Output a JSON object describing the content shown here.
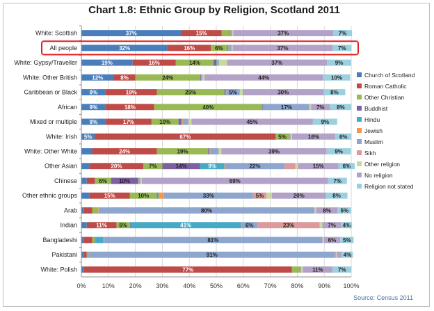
{
  "chart_data": {
    "type": "bar",
    "orientation": "horizontal",
    "stacked": true,
    "title": "Chart 1.8: Ethnic Group by Religion, Scotland 2011",
    "source": "Source: Census 2011",
    "xlim": [
      0,
      100
    ],
    "xticks": [
      "0%",
      "10%",
      "20%",
      "30%",
      "40%",
      "50%",
      "60%",
      "70%",
      "80%",
      "90%",
      "100%"
    ],
    "highlighted_category": "All people",
    "legend_position": "right",
    "categories": [
      "White: Scottish",
      "All people",
      "White: Gypsy/Traveller",
      "White: Other British",
      "Caribbean or Black",
      "African",
      "Mixed or multiple",
      "White: Irish",
      "White: Other White",
      "Other Asian",
      "Chinese",
      "Other ethnic groups",
      "Arab",
      "Indian",
      "Bangladeshi",
      "Pakistani",
      "White: Polish"
    ],
    "series": [
      {
        "name": "Church of Scotland",
        "color": "#4a7ebb",
        "values": [
          37,
          32,
          19,
          12,
          9,
          9,
          9,
          5,
          4,
          3,
          2,
          3,
          1,
          2,
          1,
          1,
          1
        ]
      },
      {
        "name": "Roman Catholic",
        "color": "#be4b48",
        "values": [
          15,
          16,
          16,
          8,
          19,
          18,
          17,
          67,
          24,
          20,
          3,
          15,
          3,
          11,
          3,
          1,
          77
        ]
      },
      {
        "name": "Other Christian",
        "color": "#98b954",
        "values": [
          3,
          6,
          14,
          24,
          25,
          40,
          10,
          5,
          19,
          7,
          6,
          10,
          2,
          5,
          1,
          0.5,
          3
        ]
      },
      {
        "name": "Buddhist",
        "color": "#7d60a0",
        "values": [
          0.2,
          0.2,
          1,
          0.3,
          0.3,
          0.2,
          1,
          0.1,
          0.3,
          14,
          10,
          0.3,
          0.1,
          0.2,
          0.2,
          0.1,
          0.1
        ]
      },
      {
        "name": "Hindu",
        "color": "#46aac5",
        "values": [
          0.1,
          0.3,
          0.2,
          0.1,
          0.3,
          0.2,
          0.3,
          0.1,
          0.2,
          9,
          0.2,
          0.3,
          0.1,
          41,
          3,
          0.2,
          0.1
        ]
      },
      {
        "name": "Jewish",
        "color": "#f79646",
        "values": [
          0.1,
          0.1,
          0.2,
          0.2,
          0.1,
          0.1,
          0.3,
          0.1,
          0.3,
          0.3,
          0.1,
          2,
          0.2,
          0.1,
          0.1,
          0.1,
          0.1
        ]
      },
      {
        "name": "Muslim",
        "color": "#8ea5ce",
        "values": [
          0.5,
          1,
          0.5,
          0.3,
          5,
          17,
          2,
          0.2,
          3,
          22,
          0.5,
          33,
          80,
          6,
          81,
          91,
          0.2
        ]
      },
      {
        "name": "Sikh",
        "color": "#dd9a9a",
        "values": [
          0.1,
          0.2,
          0.1,
          0.1,
          0.1,
          0.1,
          0.2,
          0.1,
          0.1,
          4,
          0.1,
          5,
          0.1,
          23,
          0.1,
          0.5,
          0.1
        ]
      },
      {
        "name": "Other religion",
        "color": "#c6d9a0",
        "values": [
          0.3,
          0.3,
          3,
          0.6,
          1,
          0.5,
          1,
          0.5,
          1,
          1,
          0.5,
          2,
          0.5,
          1,
          0.5,
          0.2,
          0.5
        ]
      },
      {
        "name": "No religion",
        "color": "#b3a2c7",
        "values": [
          37,
          37,
          37,
          44,
          30,
          7,
          45,
          16,
          39,
          15,
          69,
          20,
          8,
          7,
          6,
          2,
          11
        ]
      },
      {
        "name": "Religion not stated",
        "color": "#9cd0e0",
        "values": [
          7,
          7,
          9,
          10,
          8,
          8,
          9,
          6,
          9,
          6,
          7,
          8,
          5,
          4,
          5,
          4,
          7
        ]
      }
    ],
    "data_labels": [
      {
        "category": "White: Scottish",
        "series": "Church of Scotland",
        "text": "37%"
      },
      {
        "category": "White: Scottish",
        "series": "Roman Catholic",
        "text": "15%"
      },
      {
        "category": "White: Scottish",
        "series": "No religion",
        "text": "37%"
      },
      {
        "category": "White: Scottish",
        "series": "Religion not stated",
        "text": "7%"
      },
      {
        "category": "All people",
        "series": "Church of Scotland",
        "text": "32%"
      },
      {
        "category": "All people",
        "series": "Roman Catholic",
        "text": "16%"
      },
      {
        "category": "All people",
        "series": "Other Christian",
        "text": "6%"
      },
      {
        "category": "All people",
        "series": "No religion",
        "text": "37%"
      },
      {
        "category": "All people",
        "series": "Religion not stated",
        "text": "7%"
      },
      {
        "category": "White: Gypsy/Traveller",
        "series": "Church of Scotland",
        "text": "19%"
      },
      {
        "category": "White: Gypsy/Traveller",
        "series": "Roman Catholic",
        "text": "16%"
      },
      {
        "category": "White: Gypsy/Traveller",
        "series": "Other Christian",
        "text": "14%"
      },
      {
        "category": "White: Gypsy/Traveller",
        "series": "No religion",
        "text": "37%"
      },
      {
        "category": "White: Gypsy/Traveller",
        "series": "Religion not stated",
        "text": "9%"
      },
      {
        "category": "White: Other British",
        "series": "Church of Scotland",
        "text": "12%"
      },
      {
        "category": "White: Other British",
        "series": "Roman Catholic",
        "text": "8%"
      },
      {
        "category": "White: Other British",
        "series": "Other Christian",
        "text": "24%"
      },
      {
        "category": "White: Other British",
        "series": "No religion",
        "text": "44%"
      },
      {
        "category": "White: Other British",
        "series": "Religion not stated",
        "text": "10%"
      },
      {
        "category": "Caribbean or Black",
        "series": "Church of Scotland",
        "text": "9%"
      },
      {
        "category": "Caribbean or Black",
        "series": "Roman Catholic",
        "text": "19%"
      },
      {
        "category": "Caribbean or Black",
        "series": "Other Christian",
        "text": "25%"
      },
      {
        "category": "Caribbean or Black",
        "series": "Muslim",
        "text": "5%"
      },
      {
        "category": "Caribbean or Black",
        "series": "No religion",
        "text": "30%"
      },
      {
        "category": "Caribbean or Black",
        "series": "Religion not stated",
        "text": "8%"
      },
      {
        "category": "African",
        "series": "Church of Scotland",
        "text": "9%"
      },
      {
        "category": "African",
        "series": "Roman Catholic",
        "text": "18%"
      },
      {
        "category": "African",
        "series": "Other Christian",
        "text": "40%"
      },
      {
        "category": "African",
        "series": "Muslim",
        "text": "17%"
      },
      {
        "category": "African",
        "series": "No religion",
        "text": "7%"
      },
      {
        "category": "African",
        "series": "Religion not stated",
        "text": "8%"
      },
      {
        "category": "Mixed or multiple",
        "series": "Church of Scotland",
        "text": "9%"
      },
      {
        "category": "Mixed or multiple",
        "series": "Roman Catholic",
        "text": "17%"
      },
      {
        "category": "Mixed or multiple",
        "series": "Other Christian",
        "text": "10%"
      },
      {
        "category": "Mixed or multiple",
        "series": "No religion",
        "text": "45%"
      },
      {
        "category": "Mixed or multiple",
        "series": "Religion not stated",
        "text": "9%"
      },
      {
        "category": "White: Irish",
        "series": "Church of Scotland",
        "text": "5%"
      },
      {
        "category": "White: Irish",
        "series": "Roman Catholic",
        "text": "67%"
      },
      {
        "category": "White: Irish",
        "series": "Other Christian",
        "text": "5%"
      },
      {
        "category": "White: Irish",
        "series": "No religion",
        "text": "16%"
      },
      {
        "category": "White: Irish",
        "series": "Religion not stated",
        "text": "6%"
      },
      {
        "category": "White: Other White",
        "series": "Roman Catholic",
        "text": "24%"
      },
      {
        "category": "White: Other White",
        "series": "Other Christian",
        "text": "19%"
      },
      {
        "category": "White: Other White",
        "series": "No religion",
        "text": "39%"
      },
      {
        "category": "White: Other White",
        "series": "Religion not stated",
        "text": "9%"
      },
      {
        "category": "Other Asian",
        "series": "Roman Catholic",
        "text": "20%"
      },
      {
        "category": "Other Asian",
        "series": "Other Christian",
        "text": "7%"
      },
      {
        "category": "Other Asian",
        "series": "Buddhist",
        "text": "14%"
      },
      {
        "category": "Other Asian",
        "series": "Hindu",
        "text": "9%"
      },
      {
        "category": "Other Asian",
        "series": "Muslim",
        "text": "22%"
      },
      {
        "category": "Other Asian",
        "series": "No religion",
        "text": "15%"
      },
      {
        "category": "Other Asian",
        "series": "Religion not stated",
        "text": "6%"
      },
      {
        "category": "Chinese",
        "series": "Other Christian",
        "text": "6%"
      },
      {
        "category": "Chinese",
        "series": "Buddhist",
        "text": "10%"
      },
      {
        "category": "Chinese",
        "series": "No religion",
        "text": "69%"
      },
      {
        "category": "Chinese",
        "series": "Religion not stated",
        "text": "7%"
      },
      {
        "category": "Other ethnic groups",
        "series": "Roman Catholic",
        "text": "15%"
      },
      {
        "category": "Other ethnic groups",
        "series": "Other Christian",
        "text": "10%"
      },
      {
        "category": "Other ethnic groups",
        "series": "Muslim",
        "text": "33%"
      },
      {
        "category": "Other ethnic groups",
        "series": "Sikh",
        "text": "5%"
      },
      {
        "category": "Other ethnic groups",
        "series": "No religion",
        "text": "20%"
      },
      {
        "category": "Other ethnic groups",
        "series": "Religion not stated",
        "text": "8%"
      },
      {
        "category": "Arab",
        "series": "Muslim",
        "text": "80%"
      },
      {
        "category": "Arab",
        "series": "No religion",
        "text": "8%"
      },
      {
        "category": "Arab",
        "series": "Religion not stated",
        "text": "5%"
      },
      {
        "category": "Indian",
        "series": "Roman Catholic",
        "text": "11%"
      },
      {
        "category": "Indian",
        "series": "Other Christian",
        "text": "5%"
      },
      {
        "category": "Indian",
        "series": "Hindu",
        "text": "41%"
      },
      {
        "category": "Indian",
        "series": "Muslim",
        "text": "6%"
      },
      {
        "category": "Indian",
        "series": "Sikh",
        "text": "23%"
      },
      {
        "category": "Indian",
        "series": "No religion",
        "text": "7%"
      },
      {
        "category": "Indian",
        "series": "Religion not stated",
        "text": "4%"
      },
      {
        "category": "Bangladeshi",
        "series": "Muslim",
        "text": "81%"
      },
      {
        "category": "Bangladeshi",
        "series": "No religion",
        "text": "6%"
      },
      {
        "category": "Bangladeshi",
        "series": "Religion not stated",
        "text": "5%"
      },
      {
        "category": "Pakistani",
        "series": "Muslim",
        "text": "91%"
      },
      {
        "category": "Pakistani",
        "series": "Religion not stated",
        "text": "4%"
      },
      {
        "category": "White: Polish",
        "series": "Roman Catholic",
        "text": "77%"
      },
      {
        "category": "White: Polish",
        "series": "No religion",
        "text": "11%"
      },
      {
        "category": "White: Polish",
        "series": "Religion not stated",
        "text": "7%"
      }
    ]
  }
}
